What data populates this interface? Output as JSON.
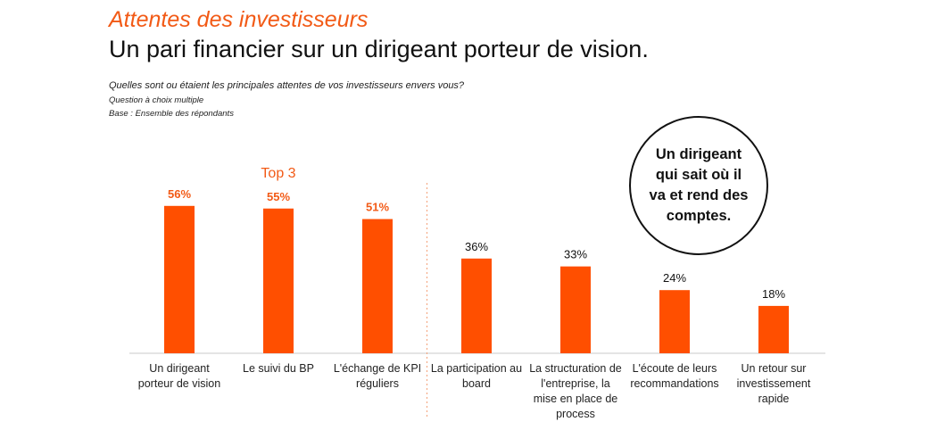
{
  "header": {
    "kicker": "Attentes des investisseurs",
    "title": "Un pari financier sur un dirigeant porteur de vision.",
    "question": "Quelles sont ou étaient les principales attentes de vos investisseurs envers vous?",
    "question_type": "Question à choix multiple",
    "base": "Base : Ensemble des répondants"
  },
  "callout": "Un dirigeant qui sait où il va et rend des comptes.",
  "top_label": "Top 3",
  "colors": {
    "bar": "#ff4f00",
    "highlight_label": "#f25a16",
    "label": "#111111",
    "axis": "#c8c8c8",
    "divider": "#f4a27a"
  },
  "chart_data": {
    "type": "bar",
    "categories": [
      "Un dirigeant porteur de vision",
      "Le suivi du BP",
      "L'échange de KPI réguliers",
      "La participation au board",
      "La structuration de l'entreprise, la mise en place de process",
      "L'écoute de leurs recommandations",
      "Un retour sur investissement rapide"
    ],
    "values": [
      56,
      55,
      51,
      36,
      33,
      24,
      18
    ],
    "value_labels": [
      "56%",
      "55%",
      "51%",
      "36%",
      "33%",
      "24%",
      "18%"
    ],
    "highlighted_top": 3,
    "ylim": [
      0,
      60
    ],
    "grid": false,
    "xlabel": "",
    "ylabel": ""
  }
}
